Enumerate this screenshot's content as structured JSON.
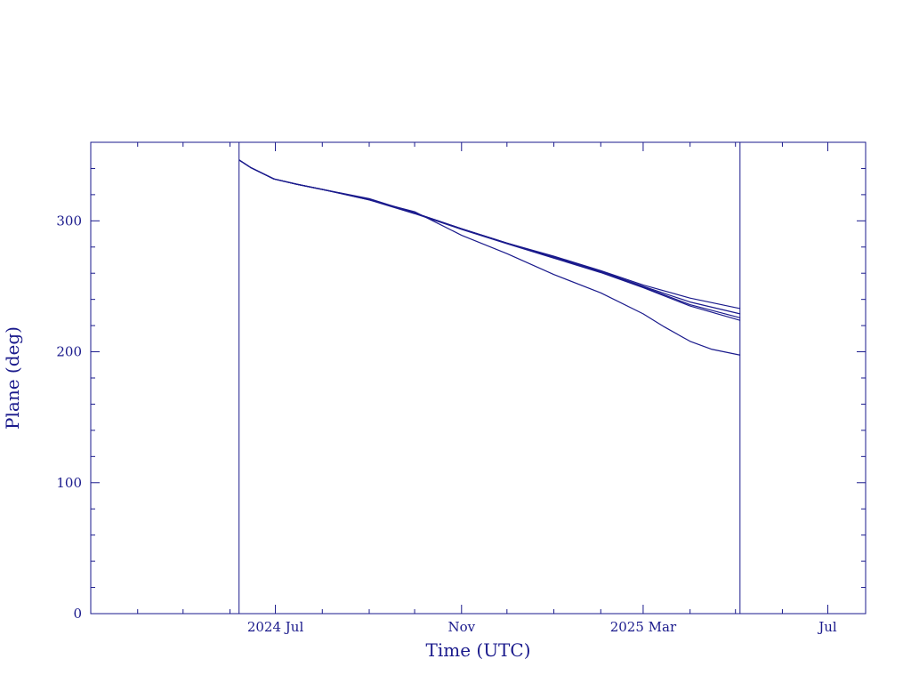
{
  "chart_data": {
    "type": "line",
    "xlabel": "Time (UTC)",
    "ylabel": "Plane (deg)",
    "xlim": [
      "2024-03-01",
      "2025-07-26"
    ],
    "ylim": [
      0,
      360
    ],
    "x_ticks": [
      {
        "date": "2024-07-01",
        "label": "2024 Jul"
      },
      {
        "date": "2024-11-01",
        "label": "Nov"
      },
      {
        "date": "2025-03-01",
        "label": "2025 Mar"
      },
      {
        "date": "2025-07-01",
        "label": "Jul"
      }
    ],
    "y_ticks": [
      0,
      100,
      200,
      300
    ],
    "vertical_lines": [
      "2024-06-07",
      "2025-05-04"
    ],
    "line_color": "#1a1a8c",
    "series": [
      {
        "points": [
          [
            "2024-06-07",
            346.5
          ],
          [
            "2024-06-15",
            340.5
          ],
          [
            "2024-06-30",
            332
          ],
          [
            "2024-07-15",
            328
          ],
          [
            "2024-08-01",
            324
          ],
          [
            "2024-09-01",
            316
          ],
          [
            "2024-10-01",
            307
          ],
          [
            "2024-11-01",
            289
          ],
          [
            "2024-12-01",
            275
          ],
          [
            "2025-01-01",
            259
          ],
          [
            "2025-02-01",
            245
          ],
          [
            "2025-03-01",
            229
          ],
          [
            "2025-03-15",
            219
          ],
          [
            "2025-04-01",
            208
          ],
          [
            "2025-04-15",
            202
          ],
          [
            "2025-05-04",
            197.5
          ]
        ]
      },
      {
        "points": [
          [
            "2024-06-07",
            346.5
          ],
          [
            "2024-06-15",
            340.5
          ],
          [
            "2024-06-30",
            332
          ],
          [
            "2024-07-15",
            328
          ],
          [
            "2024-08-01",
            324
          ],
          [
            "2024-09-01",
            317
          ],
          [
            "2024-10-01",
            306
          ],
          [
            "2024-11-01",
            294
          ],
          [
            "2024-12-01",
            283
          ],
          [
            "2025-01-01",
            273
          ],
          [
            "2025-02-01",
            262
          ],
          [
            "2025-03-01",
            251
          ],
          [
            "2025-04-01",
            241
          ],
          [
            "2025-05-04",
            233
          ]
        ]
      },
      {
        "points": [
          [
            "2024-06-07",
            346.5
          ],
          [
            "2024-06-15",
            340.5
          ],
          [
            "2024-06-30",
            332
          ],
          [
            "2024-07-15",
            328
          ],
          [
            "2024-08-01",
            324
          ],
          [
            "2024-09-01",
            316.5
          ],
          [
            "2024-10-01",
            306
          ],
          [
            "2024-11-01",
            294
          ],
          [
            "2024-12-01",
            283
          ],
          [
            "2025-01-01",
            272.5
          ],
          [
            "2025-02-01",
            261.5
          ],
          [
            "2025-03-01",
            250
          ],
          [
            "2025-04-01",
            238
          ],
          [
            "2025-05-04",
            229
          ]
        ]
      },
      {
        "points": [
          [
            "2024-06-07",
            346.5
          ],
          [
            "2024-06-15",
            340.5
          ],
          [
            "2024-06-30",
            332
          ],
          [
            "2024-07-15",
            328
          ],
          [
            "2024-08-01",
            324
          ],
          [
            "2024-09-01",
            316.5
          ],
          [
            "2024-10-01",
            306
          ],
          [
            "2024-11-01",
            294
          ],
          [
            "2024-12-01",
            283
          ],
          [
            "2025-01-01",
            272
          ],
          [
            "2025-02-01",
            261
          ],
          [
            "2025-03-01",
            249.5
          ],
          [
            "2025-04-01",
            236
          ],
          [
            "2025-05-04",
            226
          ]
        ]
      },
      {
        "points": [
          [
            "2024-06-07",
            346.5
          ],
          [
            "2024-06-15",
            340.5
          ],
          [
            "2024-06-30",
            332
          ],
          [
            "2024-07-15",
            328
          ],
          [
            "2024-08-01",
            324
          ],
          [
            "2024-09-01",
            316
          ],
          [
            "2024-10-01",
            305.5
          ],
          [
            "2024-11-01",
            293.5
          ],
          [
            "2024-12-01",
            282.5
          ],
          [
            "2025-01-01",
            271.5
          ],
          [
            "2025-02-01",
            260.5
          ],
          [
            "2025-03-01",
            249
          ],
          [
            "2025-04-01",
            235
          ],
          [
            "2025-05-04",
            224
          ]
        ]
      }
    ]
  }
}
